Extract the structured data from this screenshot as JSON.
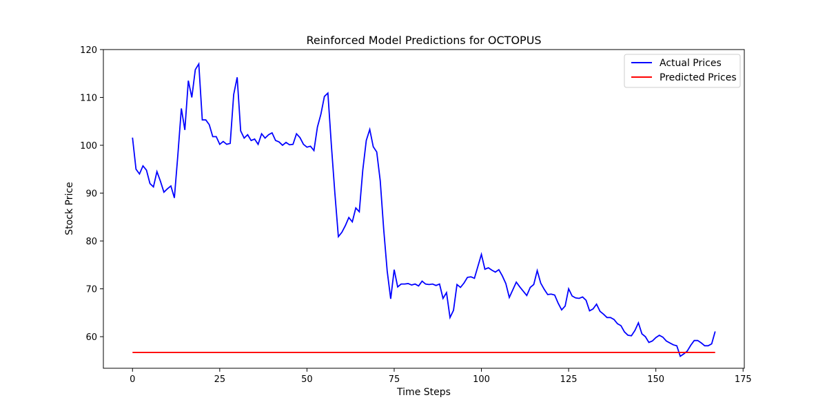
{
  "chart_data": {
    "type": "line",
    "title": "Reinforced Model Predictions for OCTOPUS",
    "xlabel": "Time Steps",
    "ylabel": "Stock Price",
    "xlim": [
      -8.35,
      175.35
    ],
    "ylim": [
      53.4,
      120
    ],
    "xticks": [
      0,
      25,
      50,
      75,
      100,
      125,
      150,
      175
    ],
    "yticks": [
      60,
      70,
      80,
      90,
      100,
      110,
      120
    ],
    "grid": false,
    "legend_position": "top-right",
    "series": [
      {
        "name": "Actual Prices",
        "color": "#0000ff",
        "values": [
          101.6,
          95.0,
          94.0,
          95.7,
          94.8,
          92.0,
          91.3,
          94.5,
          92.5,
          90.2,
          90.9,
          91.5,
          89.0,
          98.0,
          107.7,
          103.2,
          113.5,
          110.0,
          115.8,
          117.0,
          105.3,
          105.3,
          104.3,
          101.8,
          101.8,
          100.2,
          100.8,
          100.2,
          100.4,
          110.6,
          114.2,
          103.0,
          101.5,
          102.2,
          101.0,
          101.3,
          100.2,
          102.4,
          101.5,
          102.2,
          102.6,
          101.0,
          100.7,
          100.0,
          100.6,
          100.1,
          100.2,
          102.4,
          101.6,
          100.2,
          99.6,
          99.8,
          98.9,
          103.8,
          106.5,
          110.2,
          110.9,
          100.0,
          90.0,
          80.9,
          81.8,
          83.2,
          84.9,
          84.0,
          86.9,
          86.1,
          94.8,
          101.0,
          103.3,
          99.7,
          98.6,
          92.6,
          82.4,
          73.7,
          67.9,
          74.0,
          70.4,
          71.0,
          71.0,
          71.1,
          70.8,
          71.0,
          70.6,
          71.6,
          71.0,
          70.9,
          71.0,
          70.7,
          71.0,
          68.0,
          69.2,
          64.0,
          65.5,
          70.9,
          70.3,
          71.2,
          72.4,
          72.5,
          72.2,
          74.7,
          77.2,
          74.1,
          74.4,
          73.9,
          73.5,
          74.0,
          72.7,
          71.1,
          68.2,
          69.8,
          71.4,
          70.4,
          69.5,
          68.6,
          70.3,
          70.9,
          73.8,
          71.2,
          69.9,
          68.8,
          68.9,
          68.7,
          67.0,
          65.6,
          66.4,
          70.0,
          68.5,
          68.1,
          68.0,
          68.3,
          67.6,
          65.4,
          65.8,
          66.8,
          65.3,
          64.7,
          64.0,
          64.0,
          63.6,
          62.7,
          62.3,
          61.0,
          60.3,
          60.2,
          61.3,
          62.9,
          60.6,
          60.0,
          58.8,
          59.1,
          59.8,
          60.3,
          59.9,
          59.1,
          58.7,
          58.3,
          58.1,
          55.9,
          56.4,
          57.0,
          58.2,
          59.2,
          59.2,
          58.7,
          58.1,
          58.1,
          58.5,
          61.1
        ]
      },
      {
        "name": "Predicted Prices",
        "color": "#ff0000",
        "values_constant": 56.7,
        "x_range": [
          0,
          167
        ]
      }
    ]
  }
}
